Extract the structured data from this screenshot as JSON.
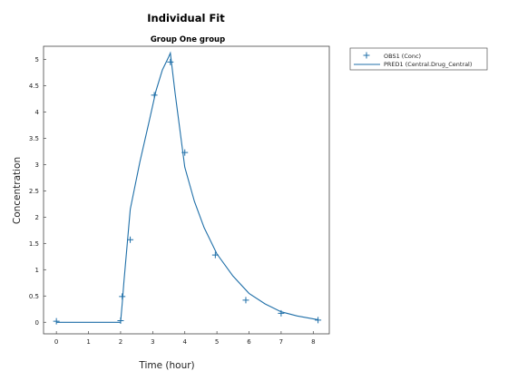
{
  "chart_data": {
    "type": "line",
    "title": "Individual Fit",
    "subtitle": "Group One group",
    "xlabel": "Time (hour)",
    "ylabel": "Concentration",
    "xlim": [
      -0.4,
      8.5
    ],
    "ylim": [
      -0.22,
      5.25
    ],
    "xticks": [
      0,
      1,
      2,
      3,
      4,
      5,
      6,
      7,
      8
    ],
    "yticks": [
      0,
      0.5,
      1,
      1.5,
      2,
      2.5,
      3,
      3.5,
      4,
      4.5,
      5
    ],
    "ytick_labels": [
      "0",
      "0.5",
      "1",
      "1.5",
      "2",
      "2.5",
      "3",
      "3.5",
      "4",
      "4.5",
      "5"
    ],
    "grid": false,
    "legend_position": "outside-top-right",
    "color": "#1f6fa8",
    "series": [
      {
        "name": "OBS1 (Conc)",
        "kind": "markers",
        "marker": "plus",
        "x": [
          0,
          2.0,
          2.05,
          2.3,
          3.05,
          3.55,
          4.0,
          4.95,
          5.9,
          7.0,
          8.15
        ],
        "y": [
          0.02,
          0.03,
          0.49,
          1.57,
          4.32,
          4.95,
          3.23,
          1.28,
          0.42,
          0.17,
          0.04
        ]
      },
      {
        "name": "PRED1 (Central.Drug_Central)",
        "kind": "line",
        "x": [
          0,
          2.0,
          2.05,
          2.1,
          2.3,
          2.6,
          2.9,
          3.1,
          3.3,
          3.5,
          3.55,
          3.7,
          4.0,
          4.3,
          4.6,
          5.0,
          5.5,
          6.0,
          6.5,
          7.0,
          7.5,
          8.15
        ],
        "y": [
          0,
          0.0,
          0.35,
          0.75,
          2.15,
          3.05,
          3.85,
          4.4,
          4.8,
          5.05,
          5.12,
          4.35,
          2.95,
          2.3,
          1.8,
          1.3,
          0.88,
          0.55,
          0.35,
          0.2,
          0.12,
          0.05
        ]
      }
    ]
  }
}
